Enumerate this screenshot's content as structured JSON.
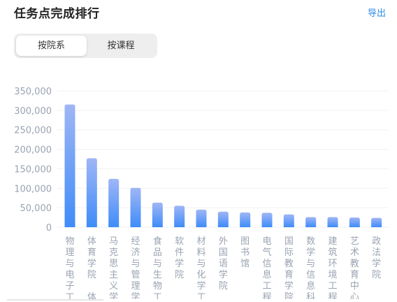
{
  "header": {
    "title": "任务点完成排行",
    "export_label": "导出"
  },
  "tabs": [
    {
      "label": "按院系",
      "active": true
    },
    {
      "label": "按课程",
      "active": false
    }
  ],
  "colors": {
    "bar_top": "#9fb6f5",
    "bar_bottom": "#3f8cf9",
    "axis_text": "#9aa3b2",
    "grid": "#f0f0f0"
  },
  "chart_data": {
    "type": "bar",
    "title": "",
    "xlabel": "",
    "ylabel": "",
    "ylim": [
      0,
      350000
    ],
    "yticks": [
      "0",
      "50,000",
      "100,000",
      "150,000",
      "200,000",
      "250,000",
      "300,000",
      "350,000"
    ],
    "categories": [
      "物理与电子工",
      "体育学院 体",
      "马克思主义学",
      "经济与管理学",
      "食品与生物工",
      "软件学院",
      "材料与化学工",
      "外国语学院",
      "图书馆",
      "电气信息工程",
      "国际教育学院",
      "数学与信息科",
      "建筑环境工程",
      "艺术教育中心",
      "政法学院"
    ],
    "values": [
      315000,
      177000,
      124000,
      101000,
      63000,
      55000,
      45000,
      40000,
      38000,
      37000,
      33000,
      26000,
      26000,
      25000,
      24000
    ],
    "grid": true,
    "legend": "none"
  }
}
